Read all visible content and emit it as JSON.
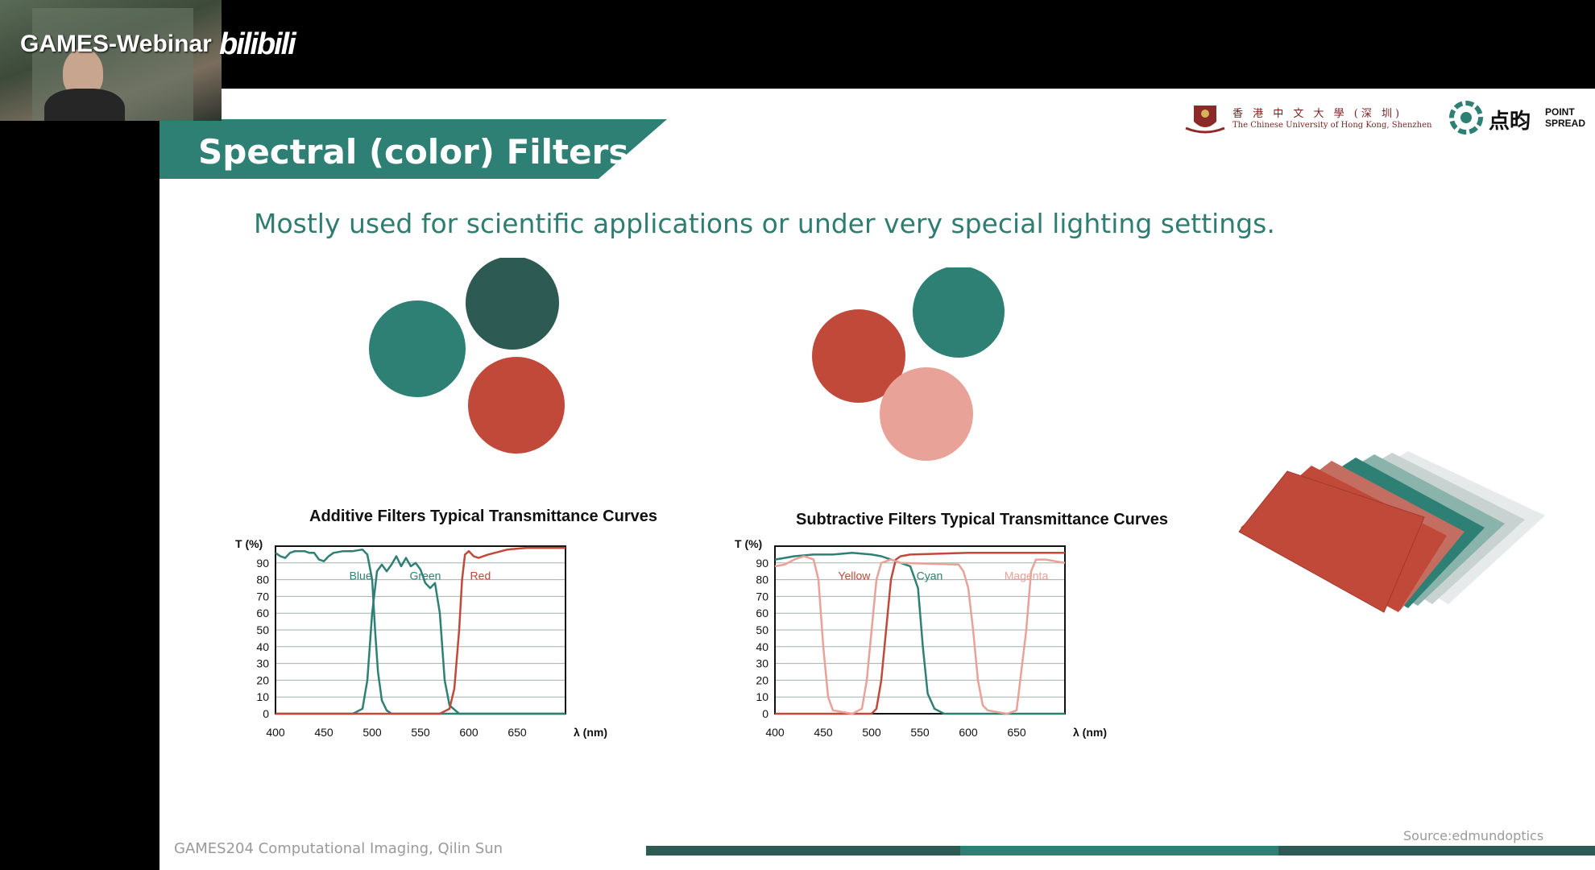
{
  "overlay": {
    "watermark_text": "GAMES-Webinar",
    "watermark_logo": "bilibili"
  },
  "slide": {
    "title": "Spectral (color) Filters",
    "subtitle": "Mostly used for scientific applications or under very special lighting settings.",
    "logos": {
      "university_cn": "香 港 中 文 大 學 (深 圳)",
      "university_en": "The Chinese University of Hong Kong, Shenzhen",
      "brand_cn": "点昀",
      "brand_en_line1": "POINT",
      "brand_en_line2": "SPREAD"
    },
    "footer": "GAMES204 Computational Imaging, Qilin Sun",
    "source": "Source:edmundoptics",
    "colors": {
      "teal": "#2e8074",
      "dark_teal": "#2d5a52",
      "red": "#c0493a",
      "pink": "#e9a298",
      "banner": "#2e8074"
    }
  },
  "chart_data": [
    {
      "type": "line",
      "title": "Additive Filters Typical Transmittance Curves",
      "ylabel": "T (%)",
      "xlabel": "λ (nm)",
      "xlim": [
        400,
        700
      ],
      "ylim": [
        0,
        100
      ],
      "x_ticks": [
        400,
        450,
        500,
        550,
        600,
        650
      ],
      "y_ticks": [
        0,
        10,
        20,
        30,
        40,
        50,
        60,
        70,
        80,
        90
      ],
      "grid": true,
      "series": [
        {
          "name": "Blue",
          "color": "#2e8074",
          "points": [
            [
              400,
              96
            ],
            [
              405,
              94
            ],
            [
              410,
              93
            ],
            [
              415,
              96
            ],
            [
              420,
              97
            ],
            [
              430,
              97
            ],
            [
              435,
              96
            ],
            [
              440,
              96
            ],
            [
              445,
              92
            ],
            [
              450,
              91
            ],
            [
              455,
              94
            ],
            [
              460,
              96
            ],
            [
              470,
              97
            ],
            [
              480,
              97
            ],
            [
              490,
              98
            ],
            [
              495,
              95
            ],
            [
              500,
              80
            ],
            [
              503,
              50
            ],
            [
              506,
              25
            ],
            [
              510,
              8
            ],
            [
              515,
              2
            ],
            [
              520,
              0
            ],
            [
              700,
              0
            ]
          ]
        },
        {
          "name": "Green",
          "color": "#2e8074",
          "points": [
            [
              400,
              0
            ],
            [
              480,
              0
            ],
            [
              490,
              3
            ],
            [
              495,
              20
            ],
            [
              500,
              60
            ],
            [
              505,
              85
            ],
            [
              510,
              89
            ],
            [
              515,
              85
            ],
            [
              520,
              89
            ],
            [
              525,
              94
            ],
            [
              530,
              88
            ],
            [
              535,
              93
            ],
            [
              540,
              88
            ],
            [
              545,
              90
            ],
            [
              550,
              86
            ],
            [
              555,
              78
            ],
            [
              560,
              75
            ],
            [
              565,
              78
            ],
            [
              570,
              60
            ],
            [
              575,
              20
            ],
            [
              580,
              5
            ],
            [
              590,
              0
            ],
            [
              700,
              0
            ]
          ]
        },
        {
          "name": "Red",
          "color": "#c0493a",
          "points": [
            [
              400,
              0
            ],
            [
              570,
              0
            ],
            [
              580,
              3
            ],
            [
              585,
              15
            ],
            [
              590,
              50
            ],
            [
              593,
              80
            ],
            [
              596,
              95
            ],
            [
              600,
              97
            ],
            [
              605,
              94
            ],
            [
              610,
              93
            ],
            [
              620,
              95
            ],
            [
              640,
              98
            ],
            [
              660,
              99
            ],
            [
              700,
              99
            ]
          ]
        }
      ],
      "annotations": [
        "Blue",
        "Green",
        "Red"
      ]
    },
    {
      "type": "line",
      "title": "Subtractive Filters Typical Transmittance Curves",
      "ylabel": "T (%)",
      "xlabel": "λ (nm)",
      "xlim": [
        400,
        700
      ],
      "ylim": [
        0,
        100
      ],
      "x_ticks": [
        400,
        450,
        500,
        550,
        600,
        650
      ],
      "y_ticks": [
        0,
        10,
        20,
        30,
        40,
        50,
        60,
        70,
        80,
        90
      ],
      "grid": true,
      "series": [
        {
          "name": "Yellow",
          "color": "#c0493a",
          "points": [
            [
              400,
              0
            ],
            [
              500,
              0
            ],
            [
              505,
              3
            ],
            [
              510,
              20
            ],
            [
              515,
              50
            ],
            [
              520,
              80
            ],
            [
              525,
              92
            ],
            [
              530,
              94
            ],
            [
              540,
              95
            ],
            [
              600,
              96
            ],
            [
              700,
              96
            ]
          ]
        },
        {
          "name": "Cyan",
          "color": "#2e8074",
          "points": [
            [
              400,
              92
            ],
            [
              410,
              93
            ],
            [
              420,
              94
            ],
            [
              440,
              95
            ],
            [
              460,
              95
            ],
            [
              480,
              96
            ],
            [
              500,
              95
            ],
            [
              510,
              94
            ],
            [
              520,
              92
            ],
            [
              530,
              90
            ],
            [
              540,
              88
            ],
            [
              548,
              75
            ],
            [
              553,
              40
            ],
            [
              558,
              12
            ],
            [
              565,
              3
            ],
            [
              575,
              0
            ],
            [
              700,
              0
            ]
          ]
        },
        {
          "name": "Magenta",
          "color": "#e9a298",
          "points": [
            [
              400,
              88
            ],
            [
              410,
              89
            ],
            [
              420,
              92
            ],
            [
              430,
              94
            ],
            [
              440,
              92
            ],
            [
              445,
              80
            ],
            [
              450,
              40
            ],
            [
              455,
              10
            ],
            [
              460,
              2
            ],
            [
              480,
              0
            ],
            [
              490,
              3
            ],
            [
              495,
              20
            ],
            [
              500,
              50
            ],
            [
              505,
              80
            ],
            [
              510,
              90
            ],
            [
              520,
              92
            ],
            [
              530,
              90
            ],
            [
              590,
              89
            ],
            [
              595,
              85
            ],
            [
              600,
              75
            ],
            [
              605,
              50
            ],
            [
              610,
              20
            ],
            [
              615,
              5
            ],
            [
              620,
              2
            ],
            [
              640,
              0
            ],
            [
              650,
              2
            ],
            [
              660,
              50
            ],
            [
              665,
              85
            ],
            [
              670,
              92
            ],
            [
              680,
              92
            ],
            [
              690,
              91
            ],
            [
              700,
              90
            ]
          ]
        }
      ],
      "annotations": [
        "Yellow",
        "Cyan",
        "Magenta"
      ]
    }
  ]
}
